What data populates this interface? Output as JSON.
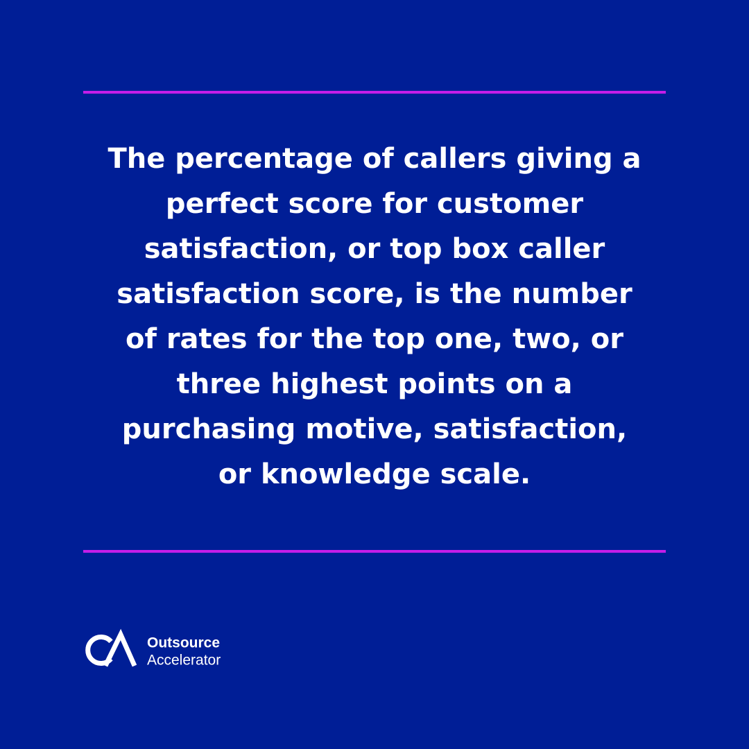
{
  "body": {
    "lines": [
      "The percentage of callers giving a",
      "perfect score for customer",
      "satisfaction, or top box caller",
      "satisfaction score, is the number",
      "of rates for the top one, two, or",
      "three highest points on a",
      "purchasing motive, satisfaction,",
      "or knowledge scale."
    ]
  },
  "logo": {
    "line1": "Outsource",
    "line2": "Accelerator"
  }
}
